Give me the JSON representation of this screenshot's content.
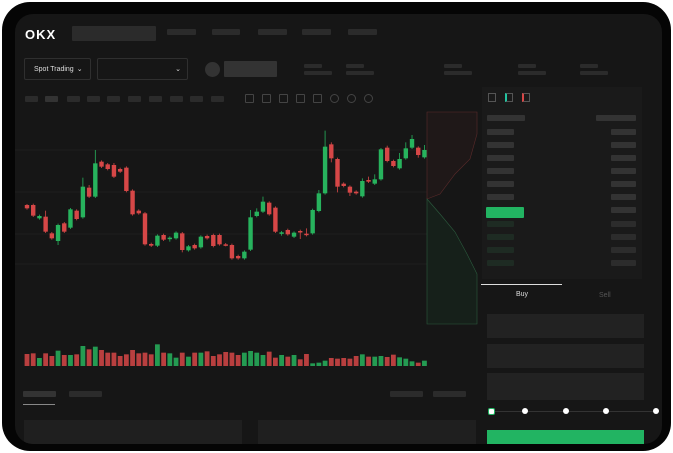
{
  "header": {
    "logo": "OKX"
  },
  "toolbar": {
    "market_selector": "Spot Trading",
    "pair_selector_icon": "chevron-down-icon"
  },
  "order_form": {
    "tabs": [
      {
        "label": "Buy",
        "active": true
      },
      {
        "label": "Sell",
        "active": false
      }
    ],
    "slider_percent": 0,
    "slider_stops": 5
  },
  "colors": {
    "up": "#27b35d",
    "down": "#d64747",
    "background": "#161616",
    "accent": "#22b462"
  },
  "chart_data": {
    "type": "candlestick",
    "title": "",
    "xlabel": "",
    "ylabel": "",
    "candles": [
      [
        180,
        183,
        166,
        170
      ],
      [
        180,
        184,
        144,
        148
      ],
      [
        140,
        151,
        136,
        147
      ],
      [
        145,
        163,
        96,
        100
      ],
      [
        95,
        99,
        76,
        80
      ],
      [
        72,
        124,
        60,
        120
      ],
      [
        125,
        129,
        96,
        100
      ],
      [
        112,
        171,
        108,
        167
      ],
      [
        163,
        167,
        134,
        138
      ],
      [
        143,
        262,
        139,
        235
      ],
      [
        232,
        240,
        201,
        205
      ],
      [
        205,
        345,
        201,
        305
      ],
      [
        310,
        314,
        291,
        295
      ],
      [
        302,
        306,
        284,
        288
      ],
      [
        300,
        306,
        261,
        265
      ],
      [
        288,
        292,
        276,
        280
      ],
      [
        292,
        296,
        218,
        222
      ],
      [
        223,
        227,
        148,
        152
      ],
      [
        163,
        167,
        151,
        155
      ],
      [
        155,
        159,
        58,
        62
      ],
      [
        63,
        67,
        54,
        58
      ],
      [
        58,
        92,
        54,
        88
      ],
      [
        90,
        94,
        72,
        76
      ],
      [
        78,
        86,
        70,
        82
      ],
      [
        80,
        101,
        76,
        97
      ],
      [
        95,
        99,
        38,
        45
      ],
      [
        44,
        60,
        40,
        56
      ],
      [
        60,
        64,
        46,
        50
      ],
      [
        53,
        89,
        49,
        85
      ],
      [
        87,
        91,
        76,
        80
      ],
      [
        90,
        94,
        53,
        57
      ],
      [
        90,
        94,
        58,
        62
      ],
      [
        62,
        66,
        56,
        60
      ],
      [
        60,
        64,
        16,
        20
      ],
      [
        27,
        31,
        16,
        20
      ],
      [
        20,
        44,
        16,
        40
      ],
      [
        46,
        165,
        42,
        143
      ],
      [
        147,
        170,
        143,
        160
      ],
      [
        160,
        205,
        156,
        190
      ],
      [
        187,
        191,
        148,
        152
      ],
      [
        172,
        176,
        96,
        100
      ],
      [
        94,
        102,
        88,
        98
      ],
      [
        105,
        109,
        88,
        92
      ],
      [
        85,
        101,
        81,
        97
      ],
      [
        102,
        106,
        78,
        100
      ],
      [
        94,
        110,
        86,
        90
      ],
      [
        95,
        169,
        91,
        165
      ],
      [
        162,
        225,
        158,
        215
      ],
      [
        215,
        403,
        211,
        355
      ],
      [
        362,
        368,
        308,
        320
      ],
      [
        318,
        322,
        218,
        235
      ],
      [
        244,
        248,
        233,
        237
      ],
      [
        235,
        239,
        207,
        217
      ],
      [
        220,
        224,
        211,
        215
      ],
      [
        206,
        260,
        202,
        252
      ],
      [
        255,
        265,
        246,
        250
      ],
      [
        244,
        272,
        240,
        257
      ],
      [
        257,
        351,
        253,
        347
      ],
      [
        352,
        358,
        308,
        312
      ],
      [
        312,
        316,
        293,
        297
      ],
      [
        290,
        336,
        286,
        318
      ],
      [
        320,
        368,
        316,
        350
      ],
      [
        352,
        390,
        348,
        378
      ],
      [
        352,
        356,
        322,
        330
      ],
      [
        323,
        360,
        319,
        345
      ]
    ],
    "volume": [
      36,
      38,
      24,
      38,
      30,
      46,
      33,
      33,
      35,
      60,
      50,
      58,
      48,
      40,
      40,
      30,
      35,
      48,
      38,
      40,
      35,
      65,
      40,
      38,
      25,
      40,
      28,
      40,
      40,
      44,
      30,
      35,
      42,
      40,
      33,
      40,
      45,
      40,
      33,
      43,
      25,
      33,
      28,
      33,
      20,
      36,
      8,
      10,
      16,
      24,
      22,
      24,
      22,
      30,
      35,
      28,
      28,
      30,
      27,
      34,
      26,
      22,
      14,
      10,
      16
    ],
    "ylim": [
      0,
      420
    ],
    "grid": true
  }
}
